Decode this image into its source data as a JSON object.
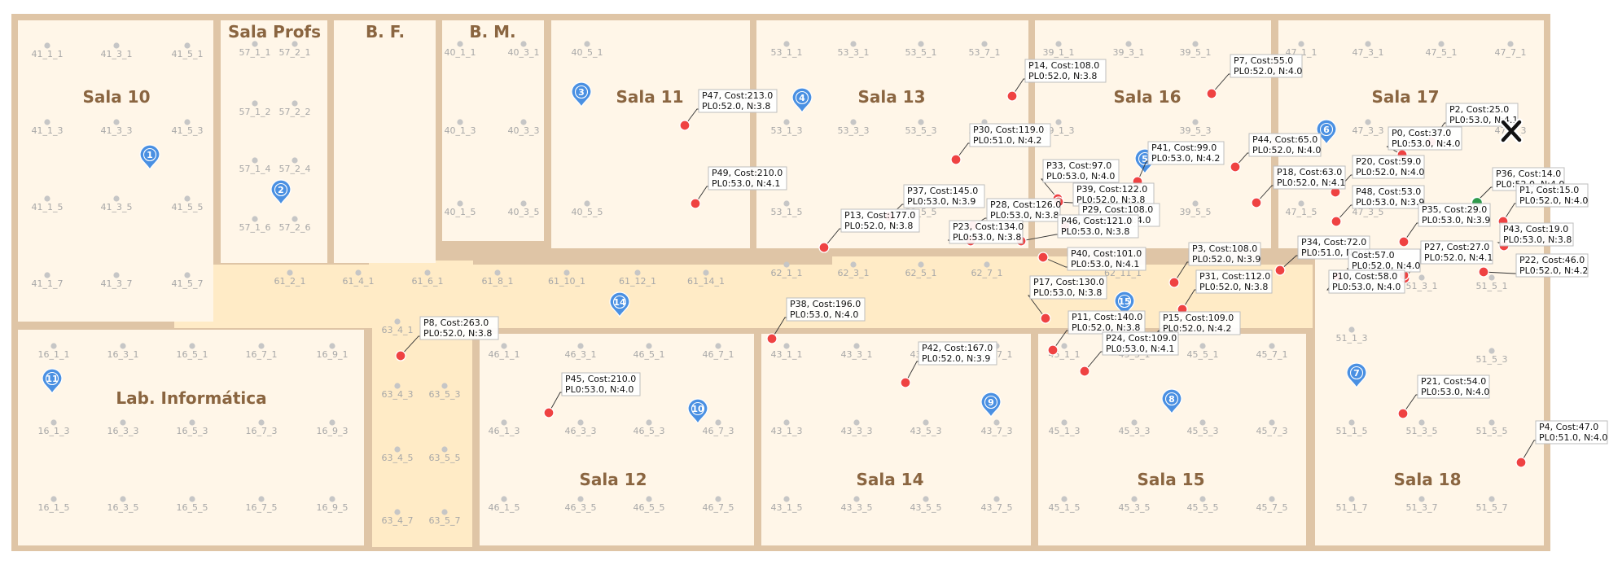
{
  "rooms": [
    {
      "id": "sala10",
      "label": "Sala 10"
    },
    {
      "id": "salaprofs",
      "label": "Sala Profs"
    },
    {
      "id": "bf",
      "label": "B. F."
    },
    {
      "id": "bm",
      "label": "B. M."
    },
    {
      "id": "sala11",
      "label": "Sala 11"
    },
    {
      "id": "sala13",
      "label": "Sala 13"
    },
    {
      "id": "sala16",
      "label": "Sala 16"
    },
    {
      "id": "sala17",
      "label": "Sala 17"
    },
    {
      "id": "lab",
      "label": "Lab. Informática"
    },
    {
      "id": "sala12",
      "label": "Sala 12"
    },
    {
      "id": "sala14",
      "label": "Sala 14"
    },
    {
      "id": "sala15",
      "label": "Sala 15"
    },
    {
      "id": "sala18",
      "label": "Sala 18"
    }
  ],
  "grid_points": [
    "41_1_1",
    "41_3_1",
    "41_5_1",
    "41_1_3",
    "41_3_3",
    "41_5_3",
    "41_1_5",
    "41_3_5",
    "41_5_5",
    "41_1_7",
    "41_3_7",
    "41_5_7",
    "57_1_1",
    "57_2_1",
    "57_1_2",
    "57_2_2",
    "57_1_4",
    "57_2_4",
    "57_1_6",
    "57_2_6",
    "40_1_1",
    "40_3_1",
    "40_5_1",
    "40_1_3",
    "40_3_3",
    "40_1_5",
    "40_3_5",
    "40_5_5",
    "53_1_1",
    "53_3_1",
    "53_5_1",
    "53_7_1",
    "53_1_3",
    "53_3_3",
    "53_5_3",
    "53_7_3",
    "53_1_5",
    "53_5_5",
    "39_1_1",
    "39_3_1",
    "39_5_1",
    "39_1_3",
    "39_5_3",
    "39_5_5",
    "47_1_1",
    "47_3_1",
    "47_5_1",
    "47_7_1",
    "47_3_3",
    "47_7_3",
    "47_1_5",
    "47_3_5",
    "61_2_1",
    "61_4_1",
    "61_6_1",
    "61_8_1",
    "61_10_1",
    "61_12_1",
    "61_14_1",
    "62_1_1",
    "62_3_1",
    "62_5_1",
    "62_7_1",
    "62_11_1",
    "63_4_1",
    "63_5_1",
    "63_4_3",
    "63_5_3",
    "63_4_5",
    "63_5_5",
    "63_4_7",
    "63_5_7",
    "16_1_1",
    "16_3_1",
    "16_5_1",
    "16_7_1",
    "16_9_1",
    "16_1_3",
    "16_3_3",
    "16_5_3",
    "16_7_3",
    "16_9_3",
    "16_1_5",
    "16_3_5",
    "16_5_5",
    "16_7_5",
    "16_9_5",
    "46_1_1",
    "46_3_1",
    "46_5_1",
    "46_7_1",
    "46_1_3",
    "46_3_3",
    "46_5_3",
    "46_7_3",
    "46_1_5",
    "46_3_5",
    "46_5_5",
    "46_7_5",
    "43_1_1",
    "43_3_1",
    "43_5_1",
    "43_7_1",
    "43_1_3",
    "43_3_3",
    "43_5_3",
    "43_7_3",
    "43_1_5",
    "43_3_5",
    "43_5_5",
    "43_7_5",
    "45_1_1",
    "45_3_1",
    "45_5_1",
    "45_7_1",
    "45_1_3",
    "45_3_3",
    "45_5_3",
    "45_7_3",
    "45_1_5",
    "45_3_5",
    "45_5_5",
    "45_7_5",
    "51_1_1",
    "51_3_1",
    "51_5_1",
    "51_1_3",
    "51_5_3",
    "51_1_5",
    "51_3_5",
    "51_5_5",
    "51_1_7",
    "51_3_7",
    "51_5_7"
  ],
  "markers": [
    "1",
    "2",
    "3",
    "4",
    "5",
    "6",
    "7",
    "8",
    "9",
    "10",
    "11",
    "14",
    "15"
  ],
  "points": [
    {
      "label": "P14, Cost:108.0",
      "sub": "PL0:52.0, N:3.8"
    },
    {
      "label": "P7, Cost:55.0",
      "sub": "PL0:52.0, N:4.0"
    },
    {
      "label": "P47, Cost:213.0",
      "sub": "PL0:52.0, N:3.8"
    },
    {
      "label": "P2, Cost:25.0",
      "sub": "PL0:53.0, N:4.1"
    },
    {
      "label": "P0, Cost:37.0",
      "sub": "PL0:53.0, N:4.0"
    },
    {
      "label": "P30, Cost:119.0",
      "sub": "PL0:51.0, N:4.2"
    },
    {
      "label": "P44, Cost:65.0",
      "sub": "PL0:52.0, N:4.0"
    },
    {
      "label": "P41, Cost:99.0",
      "sub": "PL0:53.0, N:4.2"
    },
    {
      "label": "P20, Cost:59.0",
      "sub": "PL0:52.0, N:4.0"
    },
    {
      "label": "P33, Cost:97.0",
      "sub": "PL0:53.0, N:4.0"
    },
    {
      "label": "P49, Cost:210.0",
      "sub": "PL0:53.0, N:4.1"
    },
    {
      "label": "P18, Cost:63.0",
      "sub": "PL0:52.0, N:4.1"
    },
    {
      "label": "P36, Cost:14.0",
      "sub": "PL0:52.0, N:4.0"
    },
    {
      "label": "P37, Cost:145.0",
      "sub": "PL0:53.0, N:3.9"
    },
    {
      "label": "P39, Cost:122.0",
      "sub": "PL0:52.0, N:3.8"
    },
    {
      "label": "P1, Cost:15.0",
      "sub": "PL0:52.0, N:4.0"
    },
    {
      "label": "P48, Cost:53.0",
      "sub": "PL0:53.0, N:3.9"
    },
    {
      "label": "P28, Cost:126.0",
      "sub": "PL0:53.0, N:3.8"
    },
    {
      "label": "P29, Cost:108.0",
      "sub": "PL0:53.0, N:4.0"
    },
    {
      "label": "P35, Cost:29.0",
      "sub": "PL0:53.0, N:3.9"
    },
    {
      "label": "P13, Cost:177.0",
      "sub": "PL0:52.0, N:3.8"
    },
    {
      "label": "P46, Cost:121.0",
      "sub": "PL0:53.0, N:3.8"
    },
    {
      "label": "P43, Cost:19.0",
      "sub": "PL0:53.0, N:3.8"
    },
    {
      "label": "P23, Cost:134.0",
      "sub": "PL0:53.0, N:3.8"
    },
    {
      "label": "P34, Cost:72.0",
      "sub": "PL0:51.0, N:4.0"
    },
    {
      "label": "P27, Cost:27.0",
      "sub": "PL0:52.0, N:4.1"
    },
    {
      "label": "P40, Cost:101.0",
      "sub": "PL0:53.0, N:4.1"
    },
    {
      "label": "P3, Cost:108.0",
      "sub": "PL0:52.0, N:3.9"
    },
    {
      "label": "Cost:57.0",
      "sub": "PL0:52.0, N:4.0"
    },
    {
      "label": "P22, Cost:46.0",
      "sub": "PL0:52.0, N:4.2"
    },
    {
      "label": "P31, Cost:112.0",
      "sub": "PL0:52.0, N:3.8"
    },
    {
      "label": "P10, Cost:58.0",
      "sub": "PL0:53.0, N:4.0"
    },
    {
      "label": "P17, Cost:130.0",
      "sub": "PL0:53.0, N:3.8"
    },
    {
      "label": "P38, Cost:196.0",
      "sub": "PL0:53.0, N:4.0"
    },
    {
      "label": "P8, Cost:263.0",
      "sub": "PL0:52.0, N:3.8"
    },
    {
      "label": "P11, Cost:140.0",
      "sub": "PL0:52.0, N:3.8"
    },
    {
      "label": "P15, Cost:109.0",
      "sub": "PL0:52.0, N:4.2"
    },
    {
      "label": "P24, Cost:109.0",
      "sub": "PL0:53.0, N:4.1"
    },
    {
      "label": "P42, Cost:167.0",
      "sub": "PL0:52.0, N:3.9"
    },
    {
      "label": "P45, Cost:210.0",
      "sub": "PL0:53.0, N:4.0"
    },
    {
      "label": "P21, Cost:54.0",
      "sub": "PL0:53.0, N:4.0"
    },
    {
      "label": "P4, Cost:47.0",
      "sub": "PL0:51.0, N:4.0"
    }
  ],
  "colors": {
    "wall": "#dfc5a6",
    "room_fill": "#fff6e8",
    "corridor_fill": "#ffebc6",
    "point": "#ef4242",
    "start_point": "#2e9a4a",
    "marker": "#4a90e2",
    "room_label": "#8a6540"
  },
  "target_icon": "close-x-icon"
}
